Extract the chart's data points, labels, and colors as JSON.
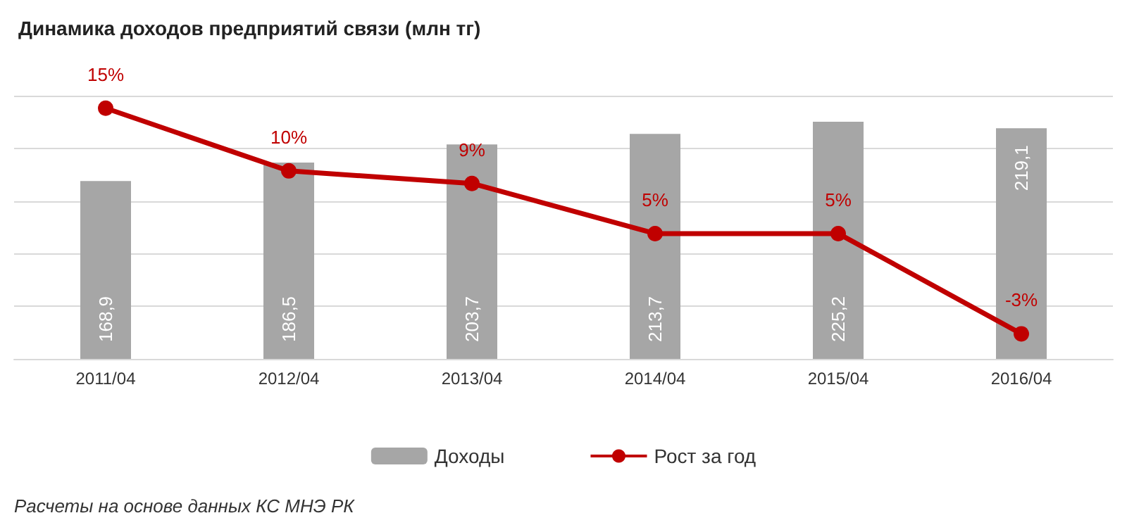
{
  "chart_data": {
    "type": "bar",
    "title": "Динамика доходов предприятий связи (млн тг)",
    "categories": [
      "2011/04",
      "2012/04",
      "2013/04",
      "2014/04",
      "2015/04",
      "2016/04"
    ],
    "series": [
      {
        "name": "Доходы",
        "color": "#a6a6a6",
        "values": [
          168.9,
          186.5,
          203.7,
          213.7,
          225.2,
          219.1
        ],
        "value_labels": [
          "168,9",
          "186,5",
          "203,7",
          "213,7",
          "225,2",
          "219,1"
        ]
      },
      {
        "name": "Рост за год",
        "type": "line",
        "axis": "y2",
        "color": "#c00000",
        "values": [
          15,
          10,
          9,
          5,
          5,
          -3
        ],
        "value_labels": [
          "15%",
          "10%",
          "9%",
          "5%",
          "5%",
          "-3%"
        ]
      }
    ],
    "ylim": [
      0,
      250
    ],
    "yticks": [
      {
        "value": 0,
        "label": null
      },
      {
        "value": 50,
        "label": null
      },
      {
        "value": 100,
        "label": null
      },
      {
        "value": 150,
        "label": null
      },
      {
        "value": 200,
        "label": null
      },
      {
        "value": 250,
        "label": null
      }
    ],
    "y2lim": [
      -5,
      16
    ],
    "grid": "y",
    "legend": "bottom",
    "tick_labels": "x",
    "marker": "circle",
    "annotations": [
      "Расчеты на основе данных КС МНЭ РК"
    ]
  }
}
